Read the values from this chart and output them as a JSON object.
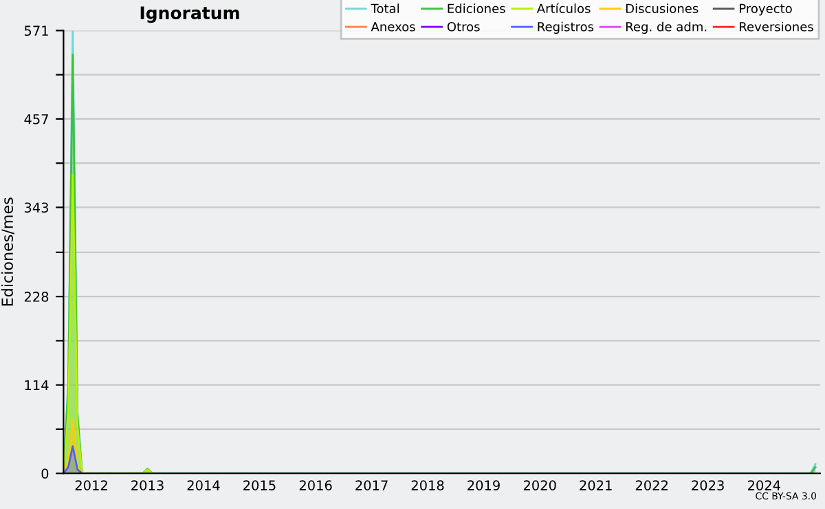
{
  "chart_data": {
    "type": "area",
    "title": "Ignoratum",
    "ylabel": "Ediciones/mes",
    "annotations": [
      "CC BY-SA 3.0"
    ],
    "xlim": [
      "2012-01",
      "2025-07"
    ],
    "ylim": [
      0,
      571
    ],
    "xticks": [
      {
        "value": "2012-07",
        "label": "2012"
      },
      {
        "value": "2013-07",
        "label": "2013"
      },
      {
        "value": "2014-07",
        "label": "2014"
      },
      {
        "value": "2015-07",
        "label": "2015"
      },
      {
        "value": "2016-07",
        "label": "2016"
      },
      {
        "value": "2017-07",
        "label": "2017"
      },
      {
        "value": "2018-07",
        "label": "2018"
      },
      {
        "value": "2019-07",
        "label": "2019"
      },
      {
        "value": "2020-07",
        "label": "2020"
      },
      {
        "value": "2021-07",
        "label": "2021"
      },
      {
        "value": "2022-07",
        "label": "2022"
      },
      {
        "value": "2023-07",
        "label": "2023"
      },
      {
        "value": "2024-07",
        "label": "2024"
      }
    ],
    "yticks": [
      0,
      {
        "value": 57,
        "label": null
      },
      114,
      {
        "value": 171,
        "label": null
      },
      228,
      {
        "value": 285,
        "label": null
      },
      343,
      {
        "value": 400,
        "label": null
      },
      457,
      {
        "value": 514,
        "label": null
      },
      571
    ],
    "grid": "y",
    "legend": "top right",
    "series": [
      {
        "name": "Total",
        "color": "#70d8d8",
        "x": [
          "2012-01",
          "2012-02",
          "2012-03",
          "2012-04",
          "2012-05",
          "2013-06",
          "2013-07",
          "2013-08",
          "2025-05",
          "2025-06"
        ],
        "values": [
          0,
          120,
          571,
          80,
          0,
          0,
          6,
          0,
          0,
          12
        ]
      },
      {
        "name": "Ediciones",
        "color": "#40c040",
        "x": [
          "2012-01",
          "2012-02",
          "2012-03",
          "2012-04",
          "2012-05",
          "2013-06",
          "2013-07",
          "2013-08",
          "2025-05",
          "2025-06"
        ],
        "values": [
          0,
          110,
          540,
          75,
          0,
          0,
          6,
          0,
          0,
          8
        ]
      },
      {
        "name": "Artículos",
        "color": "#b8f000",
        "x": [
          "2012-01",
          "2012-02",
          "2012-03",
          "2012-04",
          "2012-05",
          "2013-06",
          "2013-07",
          "2013-08"
        ],
        "values": [
          0,
          80,
          385,
          60,
          0,
          0,
          5,
          0
        ]
      },
      {
        "name": "Discusiones",
        "color": "#ffcc00",
        "x": [
          "2012-01",
          "2012-02",
          "2012-03",
          "2012-04",
          "2012-05"
        ],
        "values": [
          0,
          15,
          70,
          10,
          0
        ]
      },
      {
        "name": "Proyecto",
        "color": "#555555"
      },
      {
        "name": "Anexos",
        "color": "#ff8040"
      },
      {
        "name": "Otros",
        "color": "#8000ff"
      },
      {
        "name": "Registros",
        "color": "#5060ff",
        "x": [
          "2012-01",
          "2012-02",
          "2012-03",
          "2012-04",
          "2012-05"
        ],
        "values": [
          0,
          8,
          35,
          5,
          0
        ]
      },
      {
        "name": "Reg. de adm.",
        "color": "#e040ff"
      },
      {
        "name": "Reversiones",
        "color": "#ff2020"
      }
    ]
  }
}
